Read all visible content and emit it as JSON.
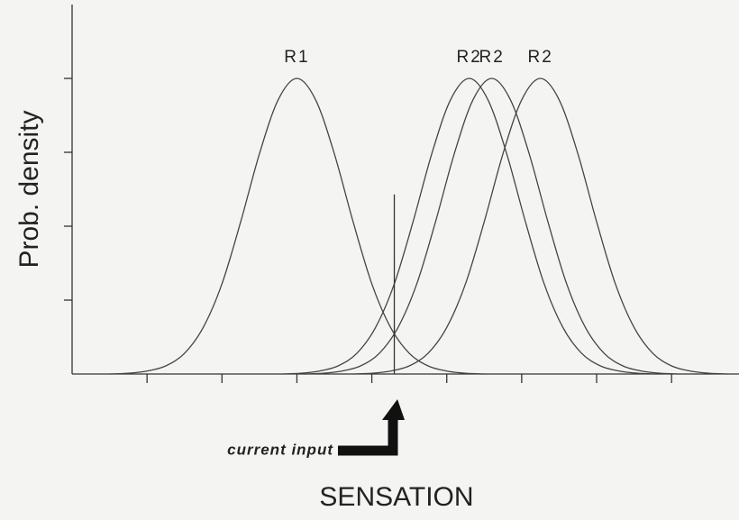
{
  "chart_data": {
    "type": "line",
    "y_label": "Prob. density",
    "x_label": "SENSATION",
    "annotation": "current input",
    "marker": {
      "x": 4.3,
      "y": 2.43
    },
    "xlim": [
      0,
      8.9
    ],
    "ylim": [
      0,
      5
    ],
    "xticks": [
      1,
      2,
      3,
      4,
      5,
      6,
      7,
      8
    ],
    "yticks": [
      1,
      2,
      3,
      4
    ],
    "color": "#444",
    "series": [
      {
        "name": "R1",
        "x": [
          0.5,
          0.75,
          1.0,
          1.25,
          1.5,
          1.75,
          2.0,
          2.25,
          2.5,
          2.75,
          3.0,
          3.25,
          3.5,
          3.75,
          4.0,
          4.25,
          4.5,
          4.75,
          5.0,
          5.25,
          5.5
        ],
        "values": [
          0.0,
          0.01,
          0.04,
          0.11,
          0.28,
          0.63,
          1.22,
          2.06,
          2.98,
          3.71,
          4,
          3.71,
          2.98,
          2.06,
          1.22,
          0.63,
          0.28,
          0.11,
          0.04,
          0.01,
          0.0
        ]
      },
      {
        "name": "R2",
        "x": [
          2.8,
          3.05,
          3.3,
          3.55,
          3.8,
          4.05,
          4.3,
          4.55,
          4.8,
          5.05,
          5.3,
          5.55,
          5.8,
          6.05,
          6.3,
          6.55,
          6.8,
          7.05,
          7.3,
          7.55,
          7.8
        ],
        "values": [
          0.0,
          0.01,
          0.04,
          0.11,
          0.28,
          0.63,
          1.22,
          2.06,
          2.98,
          3.71,
          4,
          3.71,
          2.98,
          2.06,
          1.22,
          0.63,
          0.28,
          0.11,
          0.04,
          0.01,
          0.0
        ]
      },
      {
        "name": "R2",
        "x": [
          3.1,
          3.35,
          3.6,
          3.85,
          4.1,
          4.35,
          4.6,
          4.85,
          5.1,
          5.35,
          5.6,
          5.85,
          6.1,
          6.35,
          6.6,
          6.85,
          7.1,
          7.35,
          7.6,
          7.85,
          8.1
        ],
        "values": [
          0.0,
          0.01,
          0.04,
          0.11,
          0.28,
          0.63,
          1.22,
          2.06,
          2.98,
          3.71,
          4,
          3.71,
          2.98,
          2.06,
          1.22,
          0.63,
          0.28,
          0.11,
          0.04,
          0.01,
          0.0
        ]
      },
      {
        "name": "R2",
        "x": [
          3.75,
          4.0,
          4.25,
          4.5,
          4.75,
          5.0,
          5.25,
          5.5,
          5.75,
          6.0,
          6.25,
          6.5,
          6.75,
          7.0,
          7.25,
          7.5,
          7.75,
          8.0,
          8.25,
          8.5,
          8.75
        ],
        "values": [
          0.0,
          0.01,
          0.04,
          0.11,
          0.28,
          0.63,
          1.22,
          2.06,
          2.98,
          3.71,
          4,
          3.71,
          2.98,
          2.06,
          1.22,
          0.63,
          0.28,
          0.11,
          0.04,
          0.01,
          0.0
        ]
      }
    ]
  }
}
